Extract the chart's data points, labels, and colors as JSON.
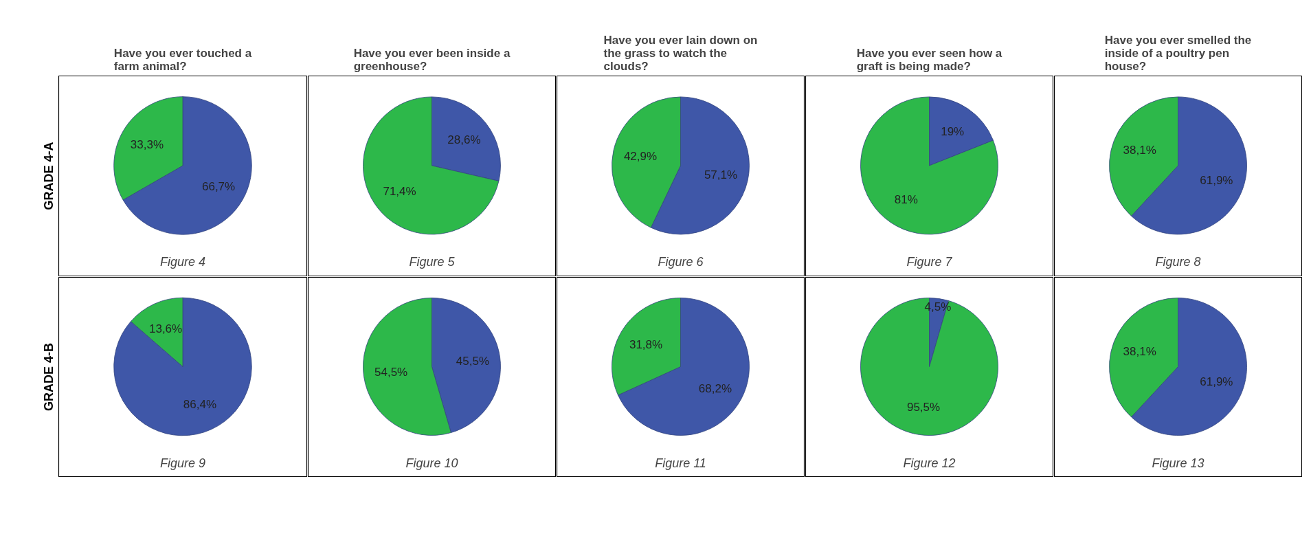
{
  "chart_data": [
    {
      "type": "pie",
      "title": "Have you ever touched a farm animal?",
      "ylabel": "GRADE 4-A",
      "categories": [
        null,
        null
      ],
      "values": [
        66.7,
        33.3
      ],
      "colors": [
        "#3f57a8",
        "#2db84a"
      ],
      "value_labels": [
        "66,7%",
        "33,3%"
      ],
      "annotations": [
        "Figure 4"
      ]
    },
    {
      "type": "pie",
      "title": "Have you ever been inside a greenhouse?",
      "categories": [
        null,
        null
      ],
      "values": [
        28.6,
        71.4
      ],
      "colors": [
        "#3f57a8",
        "#2db84a"
      ],
      "value_labels": [
        "28,6%",
        "71,4%"
      ],
      "annotations": [
        "Figure 5"
      ]
    },
    {
      "type": "pie",
      "title": "Have you ever lain down on the grass to watch the clouds?",
      "categories": [
        null,
        null
      ],
      "values": [
        57.1,
        42.9
      ],
      "colors": [
        "#3f57a8",
        "#2db84a"
      ],
      "value_labels": [
        "57,1%",
        "42,9%"
      ],
      "annotations": [
        "Figure 6"
      ]
    },
    {
      "type": "pie",
      "title": "Have you ever seen how a graft is being made?",
      "categories": [
        null,
        null
      ],
      "values": [
        19,
        81
      ],
      "colors": [
        "#3f57a8",
        "#2db84a"
      ],
      "value_labels": [
        "19%",
        "81%"
      ],
      "annotations": [
        "Figure 7"
      ]
    },
    {
      "type": "pie",
      "title": "Have you ever smelled the inside of a poultry pen house?",
      "categories": [
        null,
        null
      ],
      "values": [
        61.9,
        38.1
      ],
      "colors": [
        "#3f57a8",
        "#2db84a"
      ],
      "value_labels": [
        "61,9%",
        "38,1%"
      ],
      "annotations": [
        "Figure 8"
      ]
    },
    {
      "type": "pie",
      "ylabel": "GRADE 4-B",
      "categories": [
        null,
        null
      ],
      "values": [
        86.4,
        13.6
      ],
      "colors": [
        "#3f57a8",
        "#2db84a"
      ],
      "value_labels": [
        "86,4%",
        "13,6%"
      ],
      "annotations": [
        "Figure 9"
      ]
    },
    {
      "type": "pie",
      "categories": [
        null,
        null
      ],
      "values": [
        45.5,
        54.5
      ],
      "colors": [
        "#3f57a8",
        "#2db84a"
      ],
      "value_labels": [
        "45,5%",
        "54,5%"
      ],
      "annotations": [
        "Figure 10"
      ]
    },
    {
      "type": "pie",
      "categories": [
        null,
        null
      ],
      "values": [
        68.2,
        31.8
      ],
      "colors": [
        "#3f57a8",
        "#2db84a"
      ],
      "value_labels": [
        "68,2%",
        "31,8%"
      ],
      "annotations": [
        "Figure 11"
      ]
    },
    {
      "type": "pie",
      "categories": [
        null,
        null
      ],
      "values": [
        4.5,
        95.5
      ],
      "colors": [
        "#3f57a8",
        "#2db84a"
      ],
      "value_labels": [
        "4,5%",
        "95,5%"
      ],
      "annotations": [
        "Figure 12"
      ]
    },
    {
      "type": "pie",
      "categories": [
        null,
        null
      ],
      "values": [
        61.9,
        38.1
      ],
      "colors": [
        "#3f57a8",
        "#2db84a"
      ],
      "value_labels": [
        "61,9%",
        "38,1%"
      ],
      "annotations": [
        "Figure 13"
      ]
    }
  ]
}
